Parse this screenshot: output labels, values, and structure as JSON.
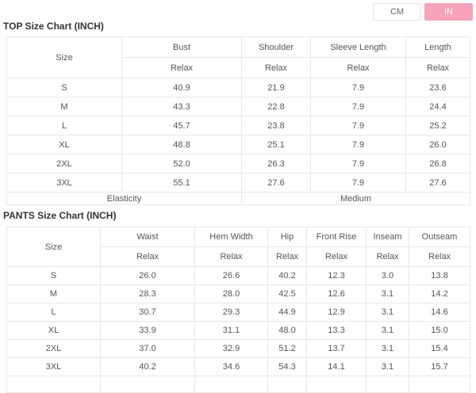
{
  "unit_toggle": {
    "cm_label": "CM",
    "in_label": "IN",
    "active_unit": "IN",
    "active_color": "#f4a3b8"
  },
  "top_chart": {
    "title": "TOP Size Chart (INCH)",
    "size_header": "Size",
    "sub_header": "Relax",
    "columns": [
      "Bust",
      "Shoulder",
      "Sleeve Length",
      "Length"
    ],
    "rows": [
      {
        "size": "S",
        "values": [
          "40.9",
          "21.9",
          "7.9",
          "23.6"
        ]
      },
      {
        "size": "M",
        "values": [
          "43.3",
          "22.8",
          "7.9",
          "24.4"
        ]
      },
      {
        "size": "L",
        "values": [
          "45.7",
          "23.8",
          "7.9",
          "25.2"
        ]
      },
      {
        "size": "XL",
        "values": [
          "48.8",
          "25.1",
          "7.9",
          "26.0"
        ]
      },
      {
        "size": "2XL",
        "values": [
          "52.0",
          "26.3",
          "7.9",
          "26.8"
        ]
      },
      {
        "size": "3XL",
        "values": [
          "55.1",
          "27.6",
          "7.9",
          "27.6"
        ]
      }
    ],
    "footer": {
      "label": "Elasticity",
      "value": "Medium"
    }
  },
  "pants_chart": {
    "title": "PANTS Size Chart (INCH)",
    "size_header": "Size",
    "sub_header": "Relax",
    "columns": [
      "Waist",
      "Hem Width",
      "Hip",
      "Front Rise",
      "Inseam",
      "Outseam"
    ],
    "rows": [
      {
        "size": "S",
        "values": [
          "26.0",
          "26.6",
          "40.2",
          "12.3",
          "3.0",
          "13.8"
        ]
      },
      {
        "size": "M",
        "values": [
          "28.3",
          "28.0",
          "42.5",
          "12.6",
          "3.1",
          "14.2"
        ]
      },
      {
        "size": "L",
        "values": [
          "30.7",
          "29.3",
          "44.9",
          "12.9",
          "3.1",
          "14.6"
        ]
      },
      {
        "size": "XL",
        "values": [
          "33.9",
          "31.1",
          "48.0",
          "13.3",
          "3.1",
          "15.0"
        ]
      },
      {
        "size": "2XL",
        "values": [
          "37.0",
          "32.9",
          "51.2",
          "13.7",
          "3.1",
          "15.4"
        ]
      },
      {
        "size": "3XL",
        "values": [
          "40.2",
          "34.6",
          "54.3",
          "14.1",
          "3.1",
          "15.7"
        ]
      }
    ]
  }
}
